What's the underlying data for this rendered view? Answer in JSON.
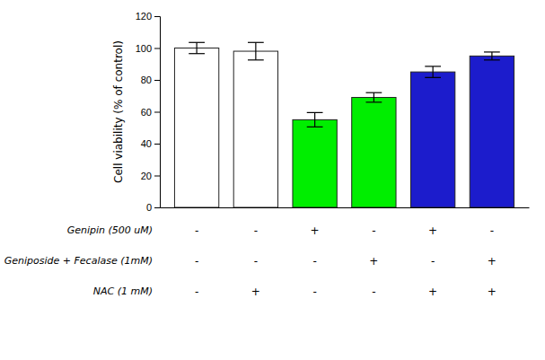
{
  "chart_data": {
    "type": "bar",
    "categories": [
      null,
      null,
      null,
      null,
      null,
      null
    ],
    "values": [
      100,
      98,
      55,
      69,
      85,
      95
    ],
    "errors": [
      3.5,
      5.5,
      4.5,
      3.0,
      3.5,
      2.5
    ],
    "colors": [
      "white",
      "white",
      "#00ee00",
      "#00ee00",
      "#1c1ccc",
      "#1c1ccc"
    ],
    "ylabel": "Cell viability (% of control)",
    "ylim": [
      0,
      120
    ],
    "yticks": [
      0,
      20,
      40,
      60,
      80,
      100,
      120
    ],
    "grid": false,
    "tick_labels": "y",
    "table_rows": [
      "Genipin (500 uM)",
      "Geniposide + Fecalase (1mM)",
      "NAC (1 mM)"
    ],
    "table_cells": [
      [
        "-",
        "-",
        "+",
        "-",
        "+",
        "-"
      ],
      [
        "-",
        "-",
        "-",
        "+",
        "-",
        "+"
      ],
      [
        "-",
        "+",
        "-",
        "-",
        "+",
        "+"
      ]
    ]
  }
}
